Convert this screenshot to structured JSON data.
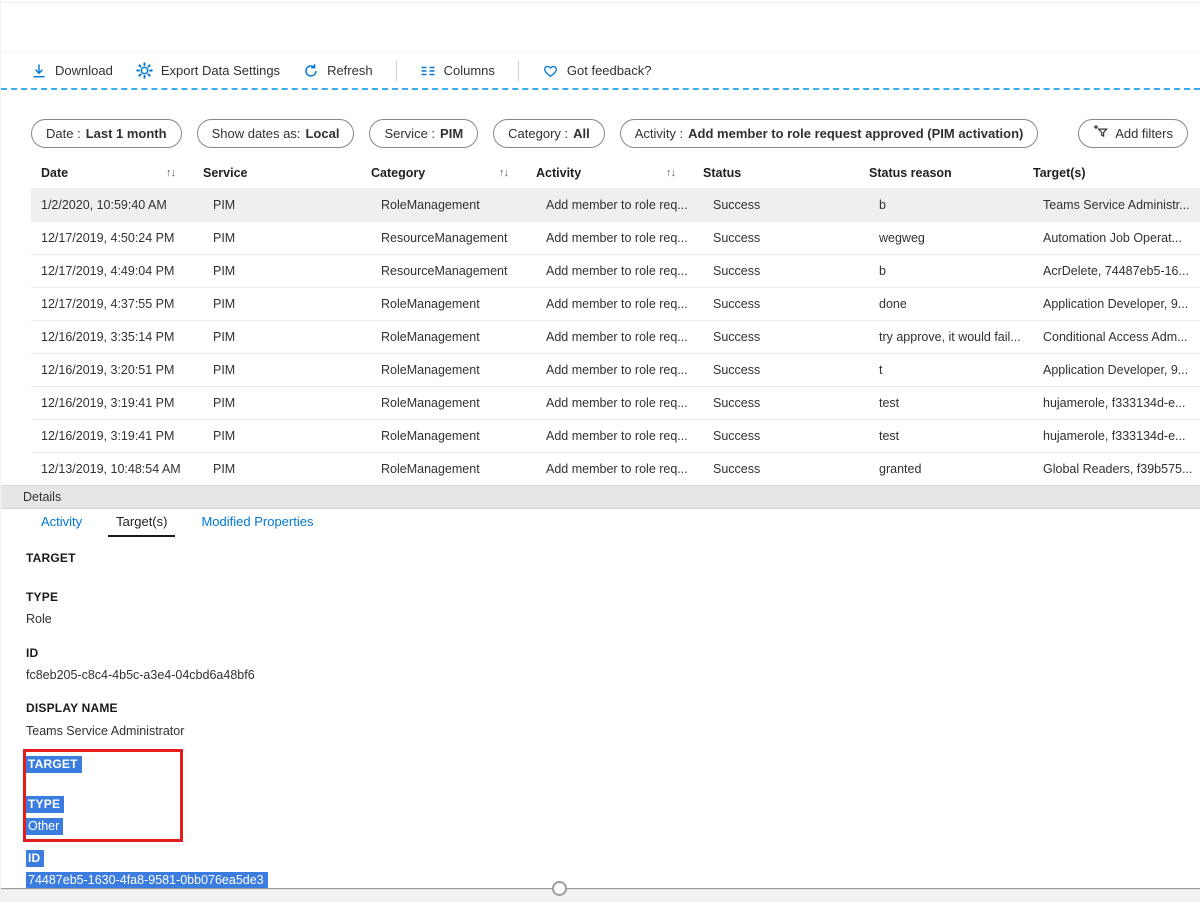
{
  "colors": {
    "accent": "#0078d4",
    "dashed_rule": "#3badee",
    "selection_highlight": "#3a7cdf",
    "annotation_red": "#e31c1c",
    "selected_row_bg": "#f0efee"
  },
  "toolbar": {
    "items": [
      {
        "icon": "download-icon",
        "label": "Download"
      },
      {
        "icon": "gear-icon",
        "label": "Export Data Settings"
      },
      {
        "icon": "refresh-icon",
        "label": "Refresh"
      },
      {
        "icon": "columns-icon",
        "label": "Columns"
      },
      {
        "icon": "heart-icon",
        "label": "Got feedback?"
      }
    ]
  },
  "filters": {
    "pills": [
      {
        "label": "Date :",
        "value": "Last 1 month"
      },
      {
        "label": "Show dates as:",
        "value": "Local"
      },
      {
        "label": "Service :",
        "value": "PIM"
      },
      {
        "label": "Category :",
        "value": "All"
      },
      {
        "label": "Activity :",
        "value": "Add member to role request approved (PIM activation)"
      }
    ],
    "add_filters_label": "Add filters"
  },
  "table": {
    "columns": [
      {
        "label": "Date",
        "sortable": true
      },
      {
        "label": "Service",
        "sortable": false
      },
      {
        "label": "Category",
        "sortable": true
      },
      {
        "label": "Activity",
        "sortable": true
      },
      {
        "label": "Status",
        "sortable": false
      },
      {
        "label": "Status reason",
        "sortable": false
      },
      {
        "label": "Target(s)",
        "sortable": false
      }
    ],
    "sort_icon": "↑↓",
    "selected_row": 0,
    "rows": [
      [
        "1/2/2020, 10:59:40 AM",
        "PIM",
        "RoleManagement",
        "Add member to role req...",
        "Success",
        "b",
        "Teams Service Administr..."
      ],
      [
        "12/17/2019, 4:50:24 PM",
        "PIM",
        "ResourceManagement",
        "Add member to role req...",
        "Success",
        "wegweg",
        "Automation Job Operat..."
      ],
      [
        "12/17/2019, 4:49:04 PM",
        "PIM",
        "ResourceManagement",
        "Add member to role req...",
        "Success",
        "b",
        "AcrDelete, 74487eb5-16..."
      ],
      [
        "12/17/2019, 4:37:55 PM",
        "PIM",
        "RoleManagement",
        "Add member to role req...",
        "Success",
        "done",
        "Application Developer, 9..."
      ],
      [
        "12/16/2019, 3:35:14 PM",
        "PIM",
        "RoleManagement",
        "Add member to role req...",
        "Success",
        "try approve, it would fail...",
        "Conditional Access Adm..."
      ],
      [
        "12/16/2019, 3:20:51 PM",
        "PIM",
        "RoleManagement",
        "Add member to role req...",
        "Success",
        "t",
        "Application Developer, 9..."
      ],
      [
        "12/16/2019, 3:19:41 PM",
        "PIM",
        "RoleManagement",
        "Add member to role req...",
        "Success",
        "test",
        "hujamerole, f333134d-e..."
      ],
      [
        "12/16/2019, 3:19:41 PM",
        "PIM",
        "RoleManagement",
        "Add member to role req...",
        "Success",
        "test",
        "hujamerole, f333134d-e..."
      ],
      [
        "12/13/2019, 10:48:54 AM",
        "PIM",
        "RoleManagement",
        "Add member to role req...",
        "Success",
        "granted",
        "Global Readers, f39b575..."
      ]
    ]
  },
  "details": {
    "title": "Details",
    "tabs": [
      "Activity",
      "Target(s)",
      "Modified Properties"
    ],
    "active_tab": "Target(s)",
    "target1": {
      "heading": "TARGET",
      "type_label": "TYPE",
      "type_value": "Role",
      "id_label": "ID",
      "id_value": "fc8eb205-c8c4-4b5c-a3e4-04cbd6a48bf6",
      "display_name_label": "DISPLAY NAME",
      "display_name_value": "Teams Service Administrator"
    },
    "target2_selected": {
      "heading": "TARGET",
      "type_label": "TYPE",
      "type_value": "Other",
      "id_label": "ID",
      "id_value": "74487eb5-1630-4fa8-9581-0bb076ea5de3"
    }
  }
}
